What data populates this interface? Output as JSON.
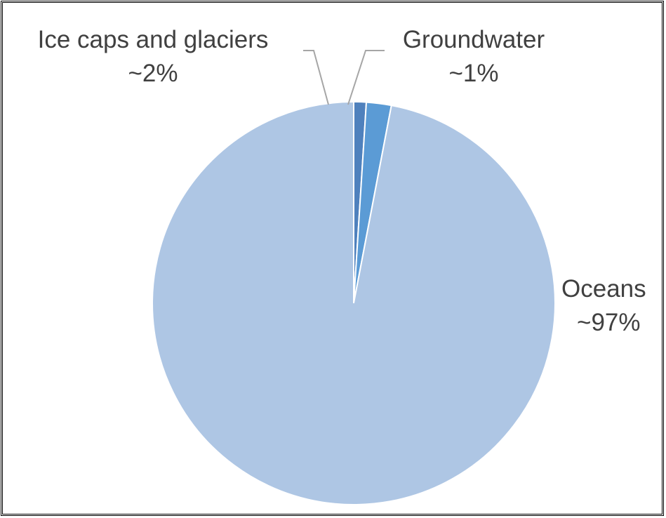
{
  "chart_data": {
    "type": "pie",
    "title": "",
    "start_angle_deg": 0,
    "direction": "clockwise",
    "legend": "none",
    "slices": [
      {
        "label": "Groundwater",
        "value": 1,
        "display": "~1%",
        "color": "#4F81BD"
      },
      {
        "label": "Ice caps and glaciers",
        "value": 2,
        "display": "~2%",
        "color": "#5B9BD5"
      },
      {
        "label": "Oceans",
        "value": 97,
        "display": "~97%",
        "color": "#AEC6E4"
      }
    ],
    "slice_border_color": "#ffffff",
    "leader_line_color": "#A6A6A6"
  }
}
